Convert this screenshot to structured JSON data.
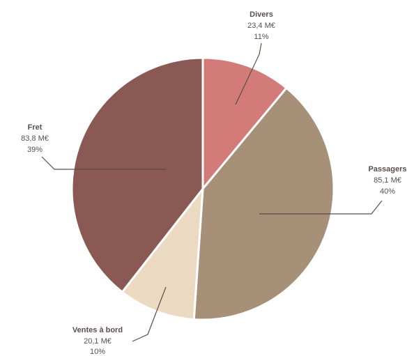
{
  "chart_data": {
    "type": "pie",
    "start_angle_deg": 0,
    "direction": "clockwise",
    "slices": [
      {
        "label": "Divers",
        "amount_text": "23,4 M€",
        "percent_text": "11%",
        "value": 23.4,
        "color": "#d27b78"
      },
      {
        "label": "Passagers",
        "amount_text": "85,1 M€",
        "percent_text": "40%",
        "value": 85.1,
        "color": "#a69078"
      },
      {
        "label": "Ventes à bord",
        "amount_text": "20,1 M€",
        "percent_text": "10%",
        "value": 20.1,
        "color": "#ebd9c1"
      },
      {
        "label": "Fret",
        "amount_text": "83,8 M€",
        "percent_text": "39%",
        "value": 83.8,
        "color": "#8b5953"
      }
    ],
    "unit": "M€",
    "legend": "none",
    "title": ""
  }
}
